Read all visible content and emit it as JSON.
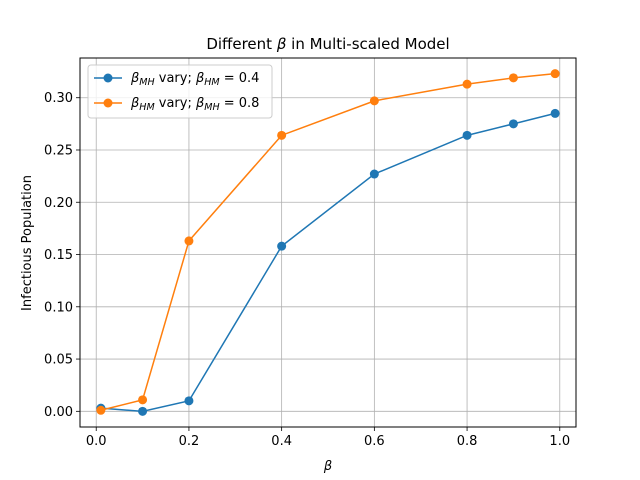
{
  "chart_data": {
    "type": "line",
    "title_prefix": "Different ",
    "title_symbol": "β",
    "title_suffix": " in Multi-scaled Model",
    "xlabel": "β",
    "ylabel": "Infectious Population",
    "xlim": [
      -0.035,
      1.035
    ],
    "ylim": [
      -0.015,
      0.338
    ],
    "xticks": [
      0.0,
      0.2,
      0.4,
      0.6,
      0.8,
      1.0
    ],
    "xtick_labels": [
      "0.0",
      "0.2",
      "0.4",
      "0.6",
      "0.8",
      "1.0"
    ],
    "yticks": [
      0.0,
      0.05,
      0.1,
      0.15,
      0.2,
      0.25,
      0.3
    ],
    "ytick_labels": [
      "0.00",
      "0.05",
      "0.10",
      "0.15",
      "0.20",
      "0.25",
      "0.30"
    ],
    "grid": true,
    "legend_position": "upper-left",
    "x": [
      0.01,
      0.1,
      0.2,
      0.4,
      0.6,
      0.8,
      0.9,
      0.99
    ],
    "series": [
      {
        "legend_sym": "β",
        "legend_sub": "MH",
        "legend_mid": " vary; ",
        "legend_sym2": "β",
        "legend_sub2": "HM",
        "legend_val": " = 0.4",
        "color": "#1f77b4",
        "values": [
          0.003,
          0.0,
          0.01,
          0.158,
          0.227,
          0.264,
          0.275,
          0.285
        ]
      },
      {
        "legend_sym": "β",
        "legend_sub": "HM",
        "legend_mid": " vary; ",
        "legend_sym2": "β",
        "legend_sub2": "MH",
        "legend_val": " = 0.8",
        "color": "#ff7f0e",
        "values": [
          0.001,
          0.011,
          0.163,
          0.264,
          0.297,
          0.313,
          0.319,
          0.323
        ]
      }
    ]
  }
}
